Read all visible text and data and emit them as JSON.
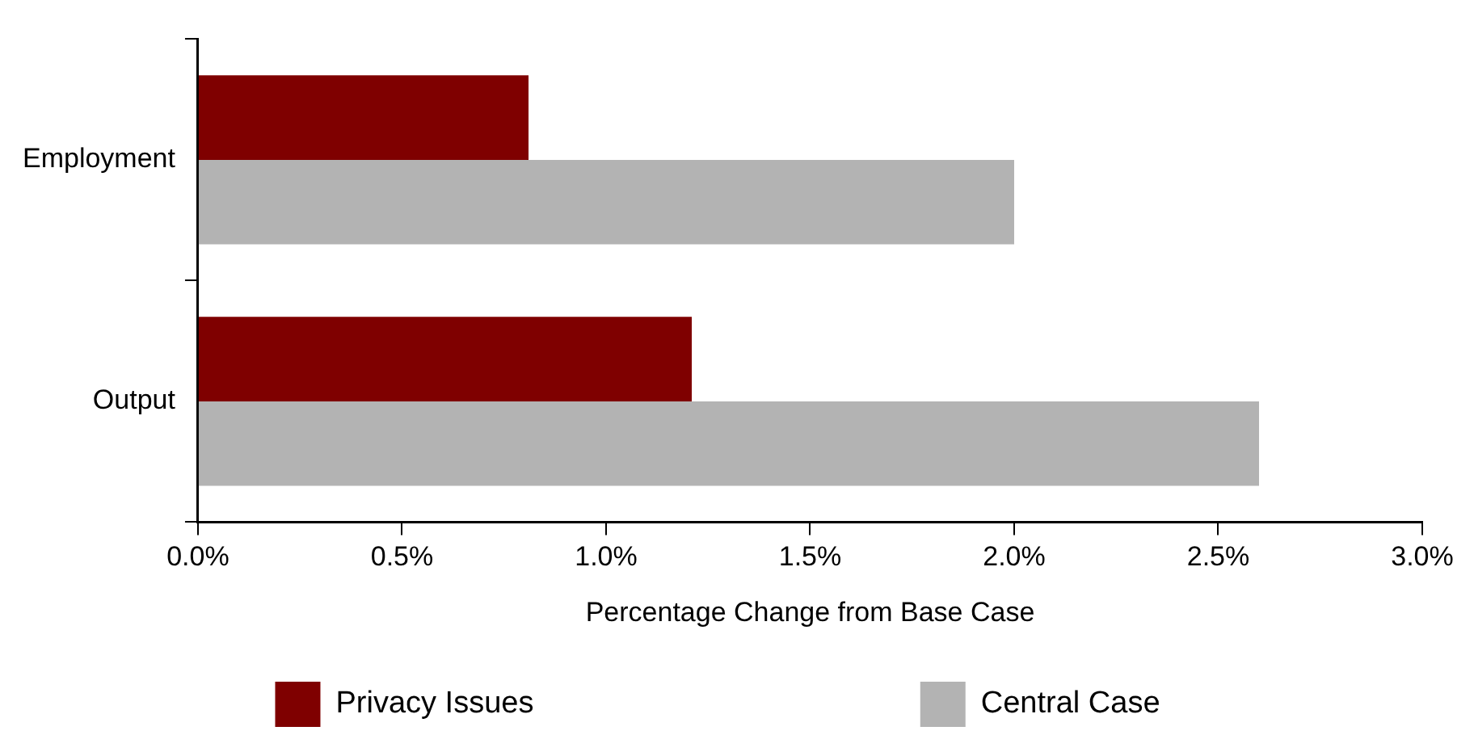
{
  "chart_data": {
    "type": "bar",
    "orientation": "horizontal",
    "categories": [
      "Employment",
      "Output"
    ],
    "series": [
      {
        "name": "Privacy Issues",
        "color": "#7f0000",
        "values": [
          0.81,
          1.21
        ]
      },
      {
        "name": "Central Case",
        "color": "#b3b3b3",
        "values": [
          2.0,
          2.6
        ]
      }
    ],
    "xlabel": "Percentage Change from Base Case",
    "xlim": [
      0,
      3
    ],
    "xticks": [
      {
        "value": 0,
        "label": "0.0%"
      },
      {
        "value": 0.5,
        "label": "0.5%"
      },
      {
        "value": 1,
        "label": "1.0%"
      },
      {
        "value": 1.5,
        "label": "1.5%"
      },
      {
        "value": 2,
        "label": "2.0%"
      },
      {
        "value": 2.5,
        "label": "2.5%"
      },
      {
        "value": 3,
        "label": "3.0%"
      }
    ],
    "grid": false,
    "legend": "bottom"
  }
}
